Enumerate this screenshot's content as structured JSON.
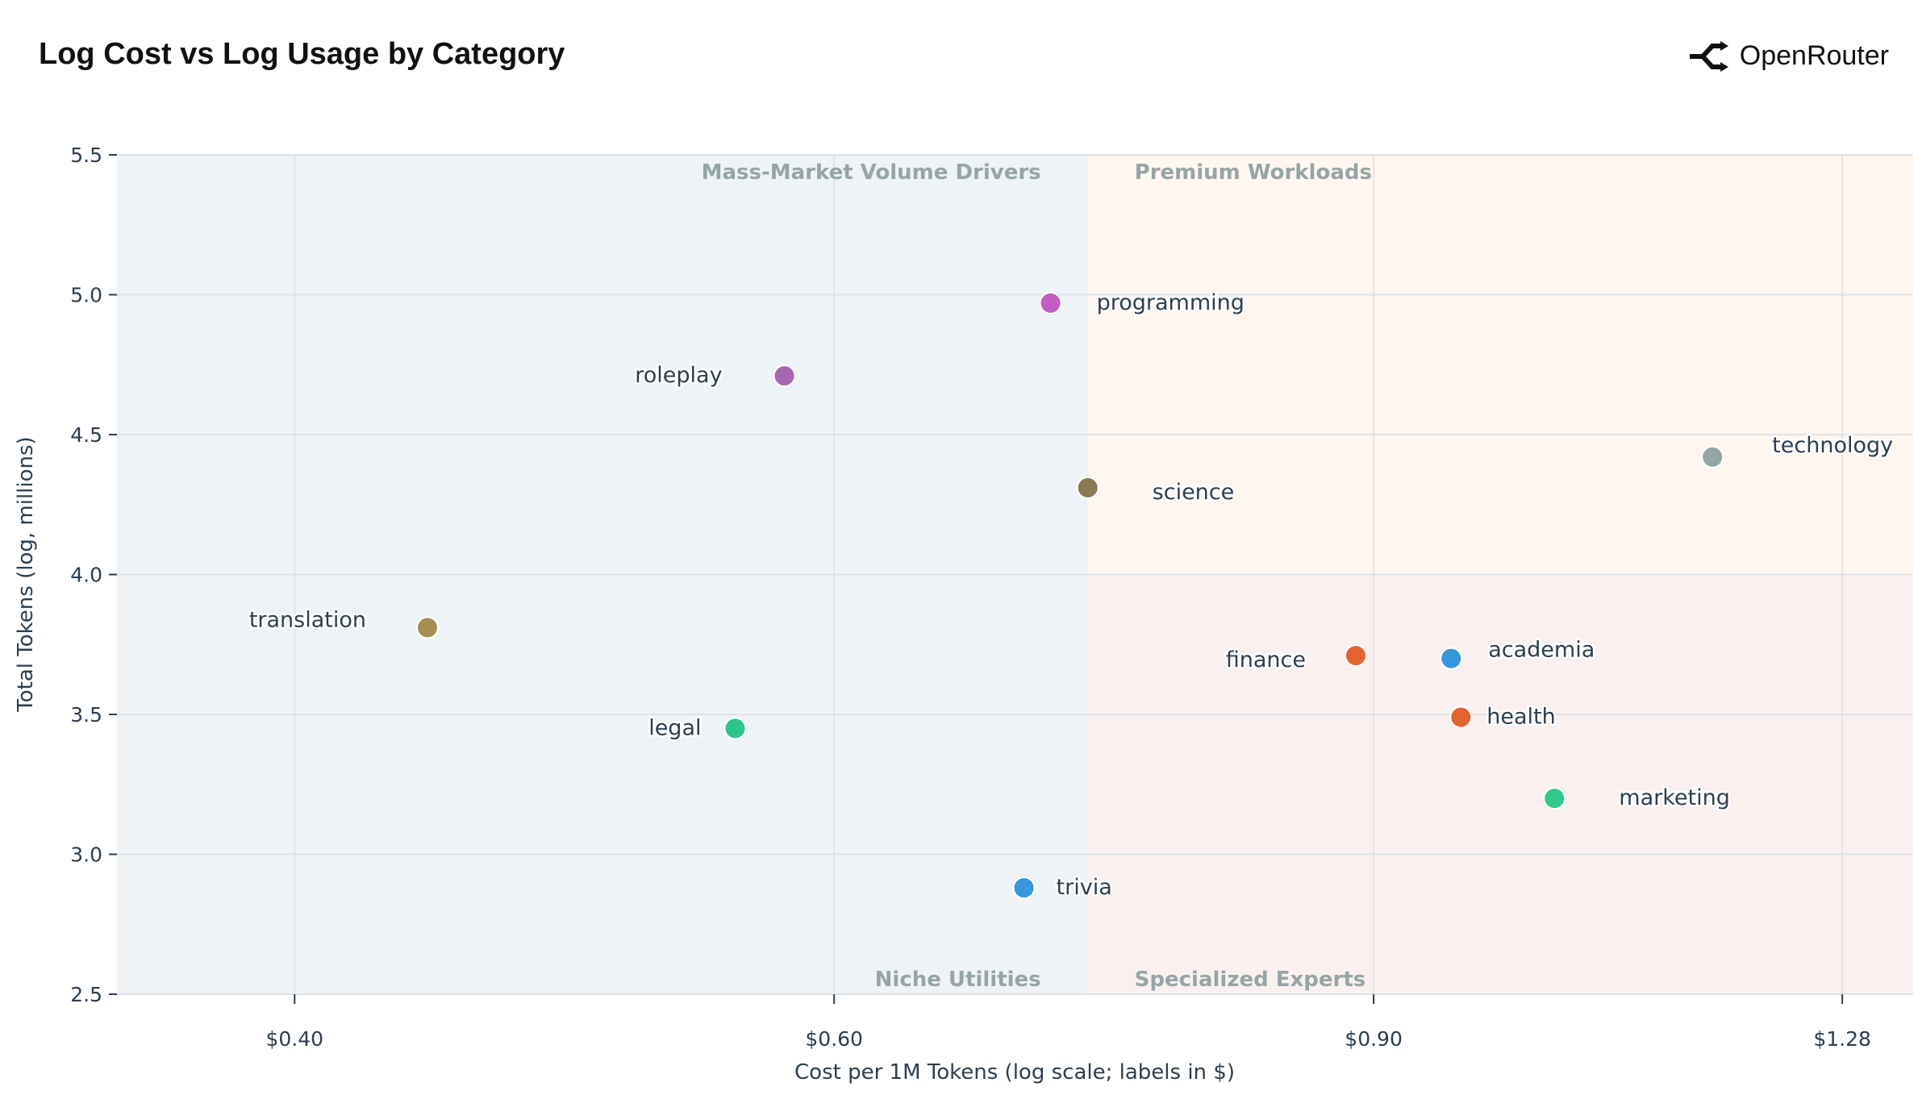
{
  "header": {
    "title": "Log Cost vs Log Usage by Category",
    "brand": "OpenRouter",
    "brand_icon": "openrouter-logo-icon"
  },
  "chart_data": {
    "type": "scatter",
    "title": "Log Cost vs Log Usage by Category",
    "xlabel": "Cost per 1M Tokens (log scale; labels in $)",
    "ylabel": "Total Tokens (log, millions)",
    "x_scale": "log",
    "xlim": [
      0.35,
      1.35
    ],
    "ylim": [
      2.5,
      5.5
    ],
    "x_ticks": [
      0.4,
      0.6,
      0.9,
      1.28
    ],
    "x_tick_labels": [
      "$0.40",
      "$0.60",
      "$0.90",
      "$1.28"
    ],
    "y_ticks": [
      2.5,
      3.0,
      3.5,
      4.0,
      4.5,
      5.0,
      5.5
    ],
    "y_tick_labels": [
      "2.5",
      "3.0",
      "3.5",
      "4.0",
      "4.5",
      "5.0",
      "5.5"
    ],
    "grid": true,
    "quadrant_split": {
      "x": 0.726,
      "y": 4.0
    },
    "quadrants": [
      {
        "label": "Mass-Market Volume Drivers",
        "position": "top-left",
        "color": "#eef3f7"
      },
      {
        "label": "Premium Workloads",
        "position": "top-right",
        "color": "#fef6ef"
      },
      {
        "label": "Niche Utilities",
        "position": "bottom-left",
        "color": "#eff3f6"
      },
      {
        "label": "Specialized Experts",
        "position": "bottom-right",
        "color": "#fbf0f0"
      }
    ],
    "points": [
      {
        "name": "programming",
        "x": 0.706,
        "y": 4.97,
        "color": "#c35bc4"
      },
      {
        "name": "roleplay",
        "x": 0.578,
        "y": 4.71,
        "color": "#a766b0"
      },
      {
        "name": "science",
        "x": 0.726,
        "y": 4.31,
        "color": "#8a7b52"
      },
      {
        "name": "technology",
        "x": 1.161,
        "y": 4.42,
        "color": "#95a5a6"
      },
      {
        "name": "translation",
        "x": 0.442,
        "y": 3.81,
        "color": "#a68e52"
      },
      {
        "name": "legal",
        "x": 0.557,
        "y": 3.45,
        "color": "#2bc48a"
      },
      {
        "name": "finance",
        "x": 0.888,
        "y": 3.71,
        "color": "#e4632e"
      },
      {
        "name": "academia",
        "x": 0.954,
        "y": 3.7,
        "color": "#3598dc"
      },
      {
        "name": "health",
        "x": 0.961,
        "y": 3.49,
        "color": "#e4632e"
      },
      {
        "name": "marketing",
        "x": 1.031,
        "y": 3.2,
        "color": "#2ecc87"
      },
      {
        "name": "trivia",
        "x": 0.692,
        "y": 2.88,
        "color": "#3598dc"
      }
    ]
  }
}
